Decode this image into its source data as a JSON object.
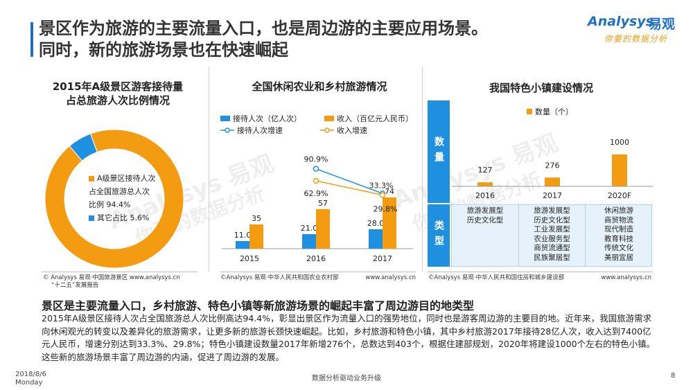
{
  "header": {
    "title_line1": "景区作为旅游的主要流量入口，也是周边游的主要应用场景。",
    "title_line2": "同时，新的旅游场景也在快速崛起",
    "logo_en": "Analysys",
    "logo_cn": "易观",
    "logo_slogan": "你要的数据分析"
  },
  "watermark": {
    "text": "Analysys 易观",
    "sub": "你要的数据分析"
  },
  "panels": {
    "left": {
      "title_line1": "2015年A级景区游客接待量",
      "title_line2": "占总旅游人次比例情况",
      "source_line1": "© Analysys 易观·中国旅游景区    www.analysys.cn",
      "source_line2": "“十二五”发展报告"
    },
    "mid": {
      "title": "全国休闲农业和乡村旅游情况",
      "source": "©Analysys 易观·中华人民共和国农业农村部",
      "source_url": "www.analysys.cn"
    },
    "right": {
      "title": "我国特色小镇建设情况",
      "source": "©Analysys 易观·中华人民共和国住房和城乡建设部",
      "source_url": "www.analysys.cn"
    }
  },
  "chart_data": [
    {
      "type": "pie",
      "title": "2015年A级景区游客接待量占总旅游人次比例情况",
      "categories": [
        "A级景区接待人次占全国旅游总人次比例",
        "其它占比"
      ],
      "values": [
        94.4,
        5.6
      ],
      "labels": [
        "A级景区接待人次",
        "占全国旅游总人次",
        "比例 94.4%",
        "其它占比 5.6%"
      ],
      "colors": [
        "#f39c12",
        "#1f8fe0"
      ]
    },
    {
      "type": "bar",
      "title": "全国休闲农业和乡村旅游情况",
      "categories": [
        "2015",
        "2016",
        "2017"
      ],
      "series": [
        {
          "name": "接待人次（亿人次）",
          "values": [
            11.0,
            21.0,
            28.0
          ],
          "labels": [
            "11.0",
            "21.0",
            "28.0"
          ],
          "color": "#1f8fe0"
        },
        {
          "name": "收入（百亿元人民币）",
          "values": [
            35,
            57,
            74
          ],
          "labels": [
            "35",
            "57",
            "74"
          ],
          "color": "#f39c12"
        }
      ],
      "line_series": [
        {
          "name": "接待人次增速",
          "categories": [
            "2016",
            "2017"
          ],
          "values": [
            90.9,
            33.3
          ],
          "labels": [
            "90.9%",
            "33.3%"
          ],
          "color": "#1f8fe0"
        },
        {
          "name": "收入增速",
          "categories": [
            "2016",
            "2017"
          ],
          "values": [
            62.9,
            29.8
          ],
          "labels": [
            "62.9%",
            "29.8%"
          ],
          "color": "#f39c12"
        }
      ]
    },
    {
      "type": "bar",
      "title": "我国特色小镇建设情况",
      "categories": [
        "2016",
        "2017",
        "2020F"
      ],
      "series": [
        {
          "name": "数量（个）",
          "values": [
            127,
            276,
            1000
          ],
          "labels": [
            "127",
            "276",
            "1000"
          ],
          "color": "#f39c12"
        }
      ],
      "table": {
        "row_headers": [
          "数量",
          "类型"
        ],
        "types": [
          [
            "旅游发展型",
            "历史文化型"
          ],
          [
            "旅游发展型",
            "历史文化型",
            "工业发展型",
            "农业服务型",
            "商贸流通型",
            "民族聚居型"
          ],
          [
            "休闲旅游",
            "商贸物流",
            "现代制造",
            "教育科技",
            "传统文化",
            "美丽宜居"
          ]
        ]
      }
    }
  ],
  "body": {
    "section_title": "景区是主要流量入口，乡村旅游、特色小镇等新旅游场景的崛起丰富了周边游目的地类型",
    "paragraph": "2015年A级景区接待人次占全国旅游总人次比例高达94.4%，彰显出景区作为流量入口的强势地位，同时也是游客周边游的主要目的地。近年来，我国旅游需求向休闲观光的转变以及差异化的旅游需求，让更多新的旅游长颈快速崛起。比如，乡村旅游和特色小镇，其中乡村旅游2017年接待28亿人次，收入达到7400亿元人民币，增速分别达到33.3%、29.8%；特色小镇建设数量2017年新增276个，总数达到403个，根据住建部规划，2020年将建设1000个左右的特色小镇。这些新的旅游场景丰富了周边游的内涵，促进了周边游的发展。"
  },
  "footer": {
    "date": "2018/8/6",
    "weekday": "Monday",
    "center": "数据分析驱动业务升级",
    "page": "8"
  }
}
